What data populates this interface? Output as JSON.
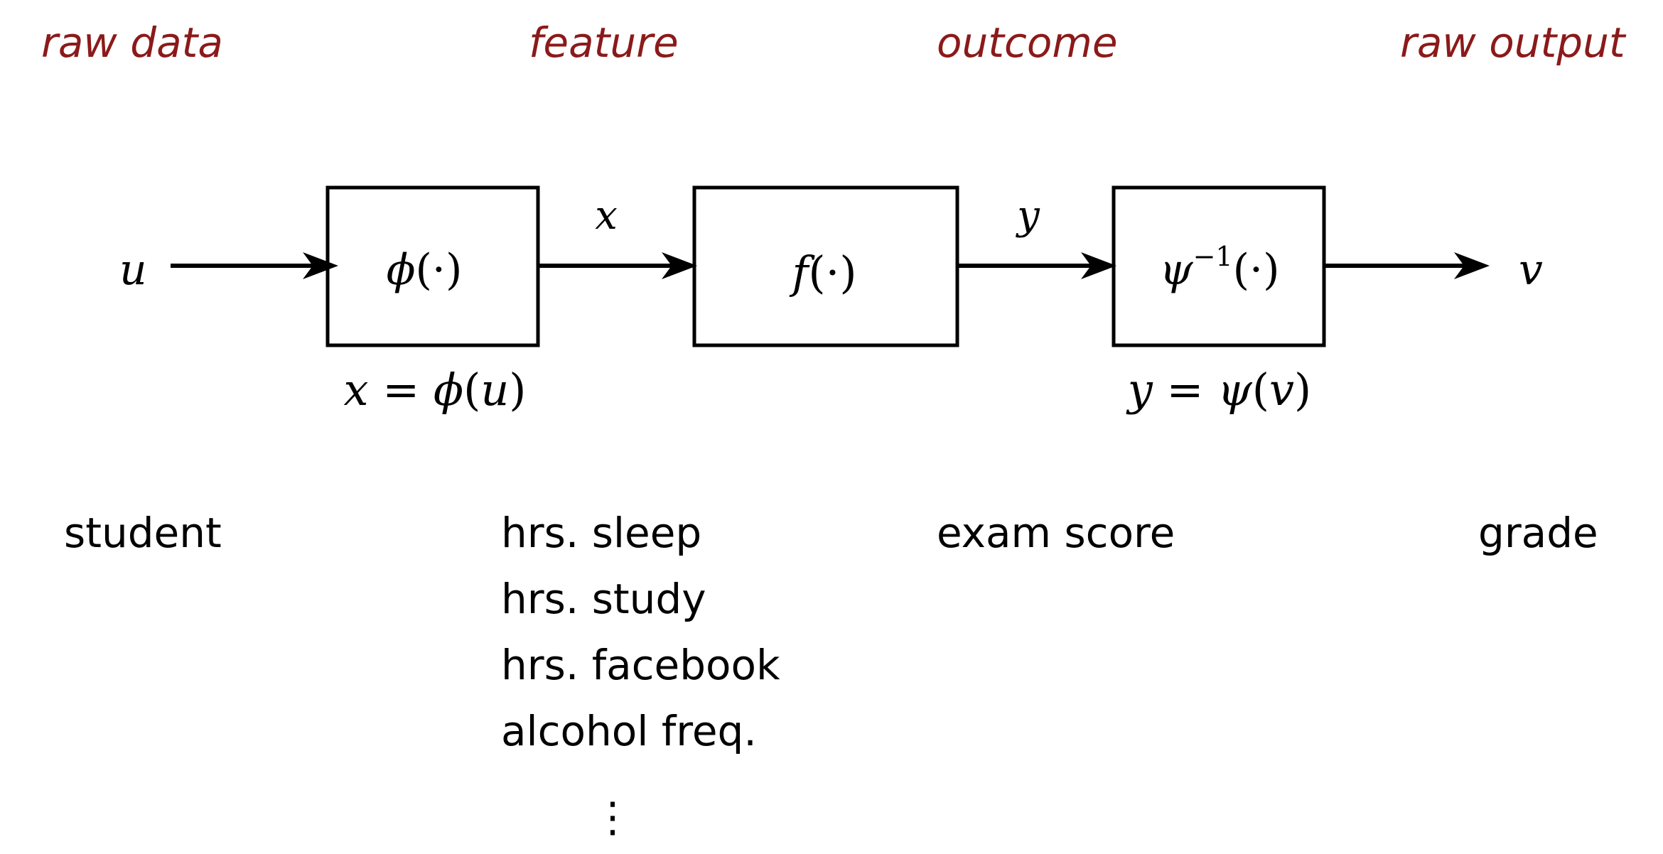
{
  "colors": {
    "header": "#8b1a1a",
    "ink": "#000000",
    "background": "#ffffff"
  },
  "headers": {
    "raw_data": "raw data",
    "feature": "feature",
    "outcome": "outcome",
    "raw_output": "raw output"
  },
  "signals": {
    "input": "u",
    "feature": "x",
    "outcome": "y",
    "output": "v"
  },
  "blocks": {
    "phi": {
      "func": "ϕ",
      "arg": "(·)"
    },
    "f": {
      "func": "f",
      "arg": "(·)"
    },
    "psi_inv": {
      "func": "ψ",
      "sup": "−1",
      "arg": "(·)"
    }
  },
  "equations": {
    "feature_map": {
      "lhs": "x",
      "eq": " = ",
      "func": "ϕ",
      "open": "(",
      "var": "u",
      "close": ")"
    },
    "output_map": {
      "lhs": "y",
      "eq": " = ",
      "func": "ψ",
      "open": "(",
      "var": "v",
      "close": ")"
    }
  },
  "examples": {
    "raw_data": "student",
    "features": [
      "hrs. sleep",
      "hrs. study",
      "hrs. facebook",
      "alcohol freq."
    ],
    "continuation": "⋮",
    "outcome": "exam score",
    "raw_output": "grade"
  }
}
